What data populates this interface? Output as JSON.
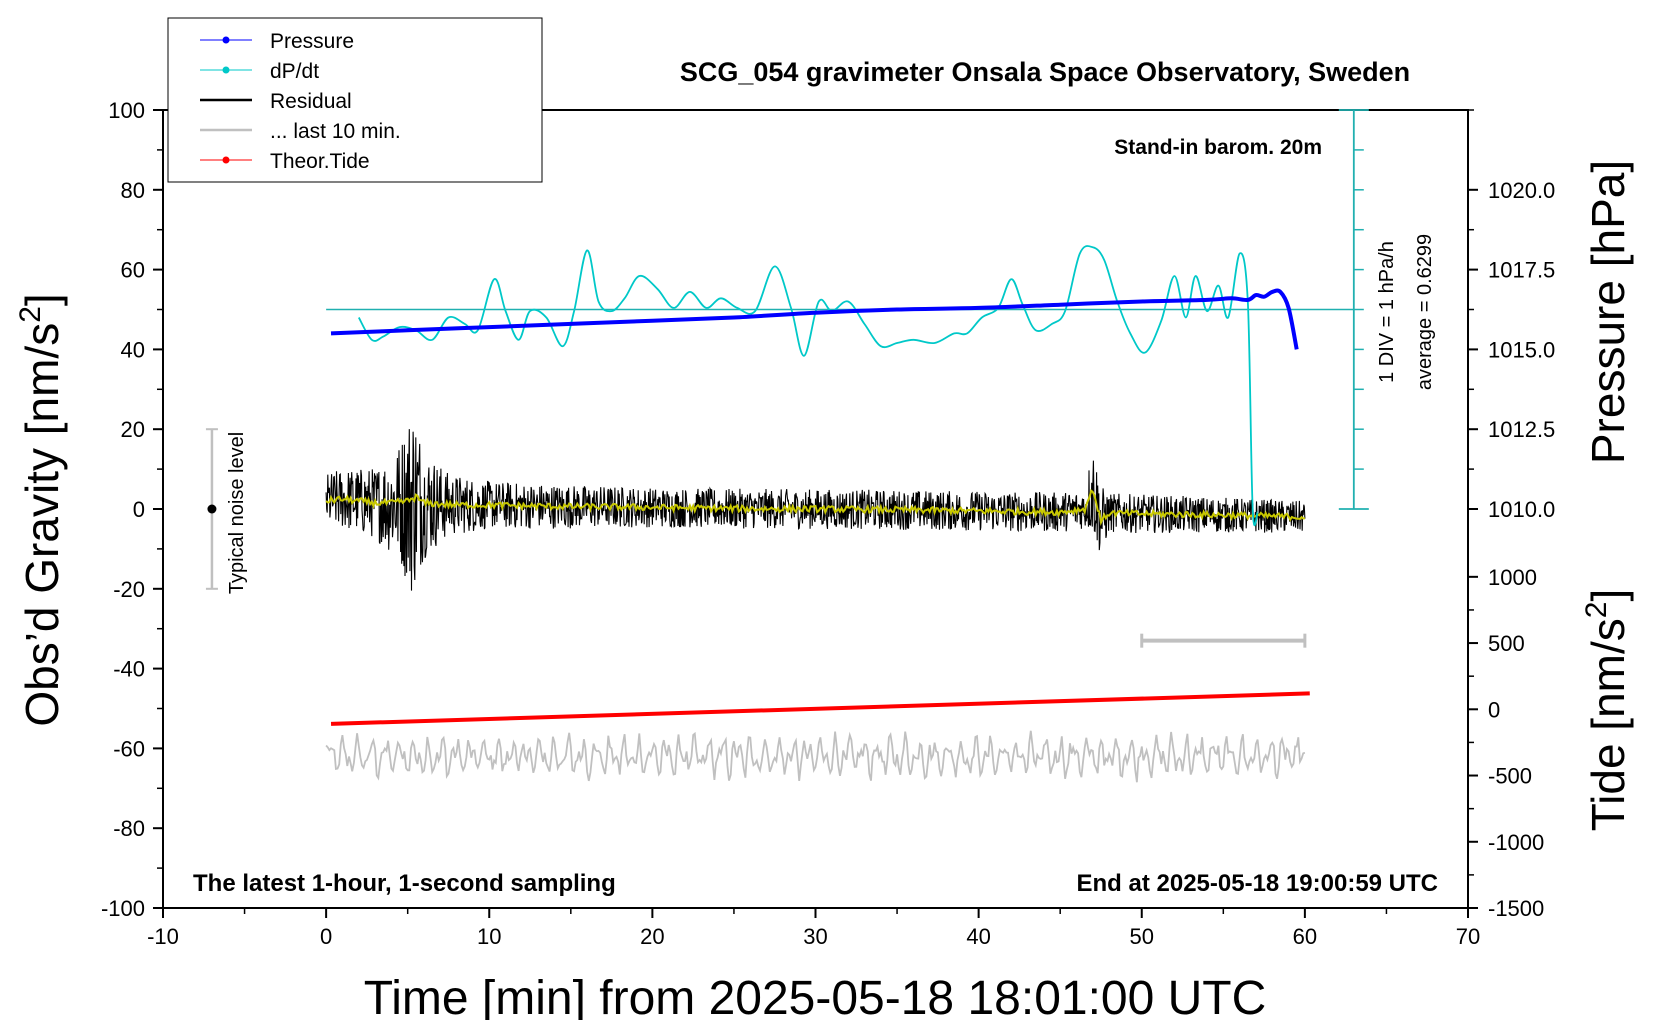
{
  "chart_data": {
    "type": "line",
    "title": "SCG_054 gravimeter Onsala Space Observatory, Sweden",
    "xlabel": "Time [min] from 2025-05-18 18:01:00 UTC",
    "ylabel_base": "Obs’d Gravity [nm/s",
    "ylabel_right_pressure": "Pressure [hPa]",
    "ylabel_right_tide_base": "Tide [nm/s",
    "units_superscript": "2",
    "units_close": "]",
    "xlim": [
      -10,
      70
    ],
    "ylim": [
      -100,
      100
    ],
    "pressure_lim": [
      1010.0,
      1022.5
    ],
    "tide_lim": [
      -1500,
      1000
    ],
    "x_ticks": [
      "-10",
      "0",
      "10",
      "20",
      "30",
      "40",
      "50",
      "60",
      "70"
    ],
    "y_ticks": [
      "100",
      "80",
      "60",
      "40",
      "20",
      "0",
      "-20",
      "-40",
      "-60",
      "-80",
      "-100"
    ],
    "pressure_ticks": [
      "1020.0",
      "1017.5",
      "1015.0",
      "1012.5",
      "1010.0"
    ],
    "tide_ticks": [
      "1000",
      "500",
      "0",
      "-500",
      "-1000",
      "-1500"
    ],
    "annotations": {
      "barometer": "Stand-in barom. 20m",
      "div_scale": "1 DIV = 1 hPa/h",
      "average": "average = 0.6299",
      "noise_level": "Typical noise level",
      "footer_left": "The latest 1-hour, 1-second sampling",
      "footer_right": "End at 2025-05-18 19:00:59 UTC"
    },
    "legend": [
      {
        "label": "Pressure",
        "color": "#0000ff",
        "marker": true
      },
      {
        "label": "dP/dt",
        "color": "#00c8c8",
        "marker": true
      },
      {
        "label": "Residual",
        "color": "#000000",
        "marker": false
      },
      {
        "label": "... last 10 min.",
        "color": "#c0c0c0",
        "marker": false
      },
      {
        "label": "Theor.Tide",
        "color": "#ff0000",
        "marker": true
      }
    ],
    "series": [
      {
        "name": "Pressure",
        "axis": "pressure",
        "color": "#0000ff",
        "x": [
          0.3,
          5,
          10,
          15,
          20,
          25,
          30,
          35,
          40,
          45,
          50,
          54,
          55.5,
          56.5,
          57,
          57.5,
          58,
          58.5,
          59,
          59.5
        ],
        "y": [
          1015.5,
          1015.6,
          1015.7,
          1015.8,
          1015.9,
          1016.0,
          1016.15,
          1016.25,
          1016.3,
          1016.4,
          1016.5,
          1016.55,
          1016.6,
          1016.55,
          1016.7,
          1016.65,
          1016.8,
          1016.8,
          1016.3,
          1015.0
        ]
      },
      {
        "name": "dP/dt",
        "axis": "pressure",
        "color": "#00c8c8",
        "x": [
          2,
          2.8,
          3.5,
          4.5,
          5.5,
          6.5,
          7.5,
          8.5,
          9.3,
          10.3,
          11,
          11.8,
          12.5,
          13.5,
          14.5,
          15.2,
          16,
          16.7,
          17.5,
          18.3,
          19.2,
          20.3,
          21.3,
          22.3,
          23.3,
          24.2,
          25.2,
          26.3,
          27.5,
          28.5,
          29.3,
          30.2,
          31,
          32,
          33,
          34,
          35,
          36,
          37.3,
          38.5,
          39.3,
          40.2,
          41.2,
          42,
          42.7,
          43.5,
          44.5,
          45.3,
          46.2,
          47,
          47.7,
          48.5,
          49.3,
          50.2,
          51.2,
          52,
          52.7,
          53.3,
          54,
          54.7,
          55.3,
          56,
          56.5,
          56.8,
          57.1
        ],
        "y": [
          1016.0,
          1015.3,
          1015.4,
          1015.7,
          1015.6,
          1015.3,
          1016.0,
          1015.8,
          1015.6,
          1017.2,
          1016.2,
          1015.3,
          1016.2,
          1016.0,
          1015.1,
          1016.2,
          1018.1,
          1016.5,
          1016.2,
          1016.6,
          1017.3,
          1016.9,
          1016.3,
          1016.8,
          1016.3,
          1016.6,
          1016.3,
          1016.2,
          1017.6,
          1016.3,
          1014.8,
          1016.5,
          1016.2,
          1016.5,
          1015.8,
          1015.1,
          1015.2,
          1015.3,
          1015.2,
          1015.5,
          1015.5,
          1016.0,
          1016.3,
          1017.2,
          1016.4,
          1015.6,
          1015.8,
          1016.2,
          1018.0,
          1018.2,
          1017.8,
          1016.5,
          1015.5,
          1014.9,
          1015.9,
          1017.3,
          1016.0,
          1017.3,
          1016.2,
          1017.0,
          1016.0,
          1018.0,
          1016.5,
          1010.0,
          1009.9
        ]
      },
      {
        "name": "Residual",
        "axis": "gravity",
        "color": "#000000",
        "x": [
          0,
          1,
          2,
          3,
          4,
          5,
          5.5,
          6,
          7,
          8,
          10,
          12,
          15,
          18,
          20,
          25,
          30,
          35,
          40,
          45,
          46.5,
          47,
          47.5,
          48,
          50,
          55,
          60
        ],
        "y": [
          2,
          2.5,
          2,
          1.5,
          1.5,
          2,
          3,
          1.5,
          1.2,
          1,
          1,
          0.8,
          0.6,
          0.5,
          0.4,
          0.1,
          0,
          -0.2,
          -0.5,
          -0.8,
          0,
          5,
          -3,
          -1,
          -1.2,
          -1.5,
          -2
        ],
        "envelope": [
          [
            0,
            7
          ],
          [
            3,
            9
          ],
          [
            4.5,
            15
          ],
          [
            5.3,
            25
          ],
          [
            6,
            14
          ],
          [
            7.5,
            8
          ],
          [
            10,
            6
          ],
          [
            20,
            5
          ],
          [
            30,
            5
          ],
          [
            40,
            5
          ],
          [
            46.5,
            5
          ],
          [
            47,
            12
          ],
          [
            47.5,
            9
          ],
          [
            48,
            5
          ],
          [
            60,
            4
          ]
        ]
      },
      {
        "name": "Residual smoothed",
        "axis": "gravity",
        "color": "#c8c800",
        "x": [
          0,
          1,
          2,
          3,
          4,
          5,
          5.5,
          6,
          7,
          8,
          10,
          12,
          15,
          18,
          20,
          25,
          30,
          35,
          40,
          45,
          46.5,
          47,
          47.5,
          48,
          50,
          55,
          60
        ],
        "y": [
          2,
          2.5,
          2,
          1.5,
          1.5,
          2,
          3,
          1.5,
          1.2,
          1,
          1,
          0.8,
          0.6,
          0.5,
          0.4,
          0.1,
          0,
          -0.2,
          -0.5,
          -0.8,
          0,
          5,
          -3,
          -1,
          -1.2,
          -1.5,
          -2
        ]
      },
      {
        "name": "Theor.Tide",
        "axis": "tide",
        "color": "#ff0000",
        "x": [
          0.3,
          60.3
        ],
        "y": [
          -110,
          120
        ]
      },
      {
        "name": "... last 10 min.",
        "axis": "gravity",
        "color": "#c0c0c0",
        "x": [
          0,
          60
        ],
        "baseline": -62,
        "amplitude": 4.5
      }
    ],
    "range_bar": {
      "x": [
        50,
        60
      ],
      "y": -33,
      "color": "#c0c0c0"
    },
    "noise_bar": {
      "x": -7,
      "y": [
        -20,
        20
      ],
      "center": 0
    },
    "div_scale_axis": {
      "x": 63,
      "y_top": 100,
      "y_bottom": 0,
      "baseline_gravity": 50,
      "color": "#20b0b0"
    }
  }
}
